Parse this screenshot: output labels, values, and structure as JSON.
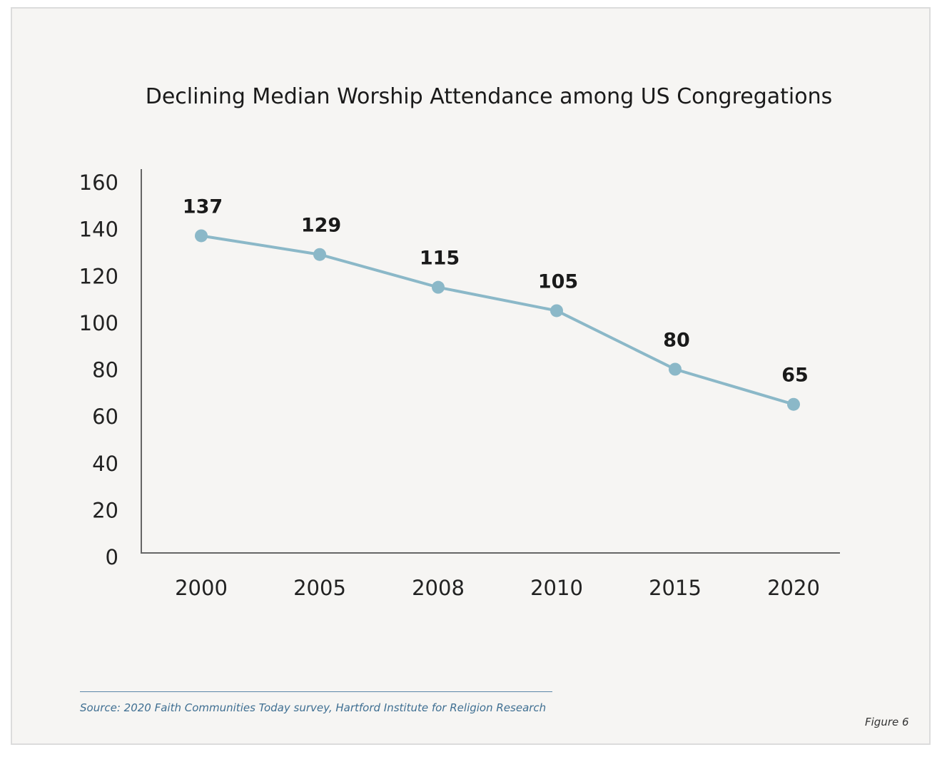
{
  "chart_data": {
    "type": "line",
    "title": "Declining Median Worship Attendance among US Congregations",
    "categories": [
      "2000",
      "2005",
      "2008",
      "2010",
      "2015",
      "2020"
    ],
    "values": [
      137,
      129,
      115,
      105,
      80,
      65
    ],
    "data_labels": [
      "137",
      "129",
      "115",
      "105",
      "80",
      "65"
    ],
    "yticks": [
      "0",
      "20",
      "40",
      "60",
      "80",
      "100",
      "120",
      "140",
      "160"
    ],
    "ylim": [
      0,
      160
    ],
    "xlabel": "",
    "ylabel": "",
    "grid": false,
    "line_color": "#8bb8c8",
    "source": "Source: 2020 Faith Communities Today survey, Hartford Institute for Religion Research",
    "figure_label": "Figure 6"
  }
}
